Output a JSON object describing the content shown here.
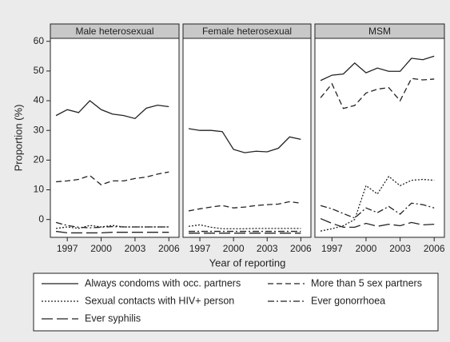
{
  "chart_data": [
    {
      "type": "line",
      "title": "Male heterosexual",
      "y_label": "Proportion (%)",
      "x": [
        1996,
        1997,
        1998,
        1999,
        2000,
        2001,
        2002,
        2003,
        2004,
        2005,
        2006
      ],
      "xlim": [
        1995.5,
        2006.9
      ],
      "xticks": [
        1997,
        2000,
        2003,
        2006
      ],
      "ylim": [
        -6,
        61
      ],
      "yticks": [
        0,
        10,
        20,
        30,
        40,
        50,
        60
      ],
      "series": [
        {
          "name": "Always condoms with occ. partners",
          "color": "#222222",
          "dash": "solid",
          "values": [
            35,
            37,
            36,
            40,
            37,
            35.5,
            35,
            34,
            37.5,
            38.5,
            38
          ]
        },
        {
          "name": "More than 5 sex partners",
          "color": "#222222",
          "dash": "dash",
          "values": [
            12.7,
            13,
            13.5,
            14.8,
            11.7,
            13,
            13,
            13.8,
            14.3,
            15.3,
            16
          ]
        },
        {
          "name": "Sexual contacts with HIV+ person",
          "color": "#222222",
          "dash": "dot",
          "values": [
            -3,
            -2.5,
            -3,
            -2,
            -2.5,
            -2,
            -2.5,
            -2.5,
            -2.5,
            -2.5,
            -2.5
          ]
        },
        {
          "name": "Ever gonorrhoea",
          "color": "#222222",
          "dash": "dashdot",
          "values": [
            -1,
            -2,
            -2.6,
            -2.8,
            -2.6,
            -2.4,
            -2.5,
            -2.5,
            -2.5,
            -2.5,
            -2.5
          ]
        },
        {
          "name": "Ever syphilis",
          "color": "#222222",
          "dash": "longdash",
          "values": [
            -4,
            -4.5,
            -4.5,
            -4.5,
            -4.5,
            -4.3,
            -4.3,
            -4.3,
            -4.3,
            -4.3,
            -4.3
          ]
        }
      ]
    },
    {
      "type": "line",
      "title": "Female heterosexual",
      "x_label": "Year of reporting",
      "x": [
        1996,
        1997,
        1998,
        1999,
        2000,
        2001,
        2002,
        2003,
        2004,
        2005,
        2006
      ],
      "xlim": [
        1995.5,
        2006.9
      ],
      "xticks": [
        1997,
        2000,
        2003,
        2006
      ],
      "ylim": [
        -6,
        61
      ],
      "series": [
        {
          "color": "#222222",
          "dash": "solid",
          "values": [
            30.6,
            30,
            30,
            29.6,
            23.6,
            22.5,
            23,
            22.8,
            24,
            27.8,
            27
          ]
        },
        {
          "color": "#222222",
          "dash": "dash",
          "values": [
            2.9,
            3.6,
            4.2,
            4.7,
            3.9,
            4.2,
            4.7,
            5,
            5.2,
            6,
            5.5
          ]
        },
        {
          "color": "#222222",
          "dash": "dot",
          "values": [
            -2.3,
            -1.8,
            -2.6,
            -3.1,
            -3.1,
            -3.1,
            -3,
            -3,
            -3,
            -3,
            -3
          ]
        },
        {
          "color": "#222222",
          "dash": "dashdot",
          "values": [
            -4,
            -4,
            -4,
            -4,
            -4,
            -4,
            -4,
            -4,
            -4,
            -4,
            -4
          ]
        },
        {
          "color": "#222222",
          "dash": "longdash",
          "values": [
            -4.6,
            -4.6,
            -4.6,
            -4.6,
            -4.6,
            -4.6,
            -4.6,
            -4.6,
            -4.6,
            -4.6,
            -4.6
          ]
        }
      ]
    },
    {
      "type": "line",
      "title": "MSM",
      "x": [
        1996,
        1997,
        1998,
        1999,
        2000,
        2001,
        2002,
        2003,
        2004,
        2005,
        2006
      ],
      "xlim": [
        1995.5,
        2006.9
      ],
      "xticks": [
        1997,
        2000,
        2003,
        2006
      ],
      "ylim": [
        -6,
        61
      ],
      "series": [
        {
          "color": "#222222",
          "dash": "solid",
          "values": [
            46.8,
            48.6,
            49,
            52.7,
            49.4,
            51,
            49.9,
            49.9,
            54.3,
            53.8,
            55
          ]
        },
        {
          "color": "#222222",
          "dash": "dash",
          "values": [
            41,
            45.7,
            37.4,
            38.4,
            42.6,
            43.9,
            44.4,
            40,
            47.5,
            47,
            47.3
          ]
        },
        {
          "color": "#222222",
          "dash": "dot",
          "values": [
            -3.9,
            -3.1,
            -2.1,
            0,
            11.4,
            8.6,
            14.5,
            11.4,
            13.2,
            13.5,
            13.2
          ]
        },
        {
          "color": "#222222",
          "dash": "dashdot",
          "values": [
            4.7,
            3.6,
            2,
            0.5,
            3.9,
            2.3,
            4.4,
            1.8,
            5.5,
            5,
            3.9
          ]
        },
        {
          "color": "#222222",
          "dash": "longdash",
          "values": [
            0.3,
            -1.3,
            -2.6,
            -2.6,
            -1.3,
            -2.3,
            -1.6,
            -2.1,
            -1,
            -1.8,
            -1.6
          ]
        }
      ]
    }
  ]
}
